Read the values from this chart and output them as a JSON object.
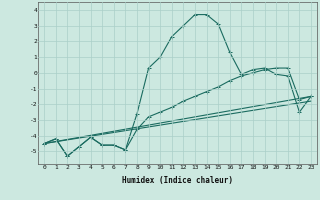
{
  "xlabel": "Humidex (Indice chaleur)",
  "bg_color": "#cce8e0",
  "grid_color": "#aacfc8",
  "line_color": "#1a6b60",
  "line1_x": [
    0,
    1,
    2,
    3,
    4,
    5,
    6,
    7,
    8,
    9,
    10,
    11,
    12,
    13,
    14,
    15,
    16,
    17,
    18,
    19,
    20,
    21,
    22,
    23
  ],
  "line1_y": [
    -4.5,
    -4.2,
    -5.3,
    -4.7,
    -4.1,
    -4.6,
    -4.6,
    -4.9,
    -2.6,
    0.3,
    1.0,
    2.3,
    3.0,
    3.7,
    3.7,
    3.1,
    1.3,
    -0.1,
    0.2,
    0.3,
    -0.1,
    -0.2,
    -2.5,
    -1.5
  ],
  "line2_x": [
    0,
    1,
    2,
    3,
    4,
    5,
    6,
    7,
    8,
    9,
    10,
    11,
    12,
    13,
    14,
    15,
    16,
    17,
    18,
    19,
    20,
    21,
    22,
    23
  ],
  "line2_y": [
    -4.5,
    -4.2,
    -5.3,
    -4.7,
    -4.1,
    -4.6,
    -4.6,
    -4.9,
    -3.6,
    -2.8,
    -2.5,
    -2.2,
    -1.8,
    -1.5,
    -1.2,
    -0.9,
    -0.5,
    -0.2,
    0.0,
    0.2,
    0.3,
    0.3,
    -1.7,
    -1.5
  ],
  "line3_x": [
    0,
    23
  ],
  "line3_y": [
    -4.5,
    -1.5
  ],
  "line4_x": [
    0,
    23
  ],
  "line4_y": [
    -4.5,
    -1.8
  ],
  "ylim": [
    -5.8,
    4.5
  ],
  "xlim": [
    -0.5,
    23.5
  ],
  "yticks": [
    -5,
    -4,
    -3,
    -2,
    -1,
    0,
    1,
    2,
    3,
    4
  ],
  "xticks": [
    0,
    1,
    2,
    3,
    4,
    5,
    6,
    7,
    8,
    9,
    10,
    11,
    12,
    13,
    14,
    15,
    16,
    17,
    18,
    19,
    20,
    21,
    22,
    23
  ]
}
